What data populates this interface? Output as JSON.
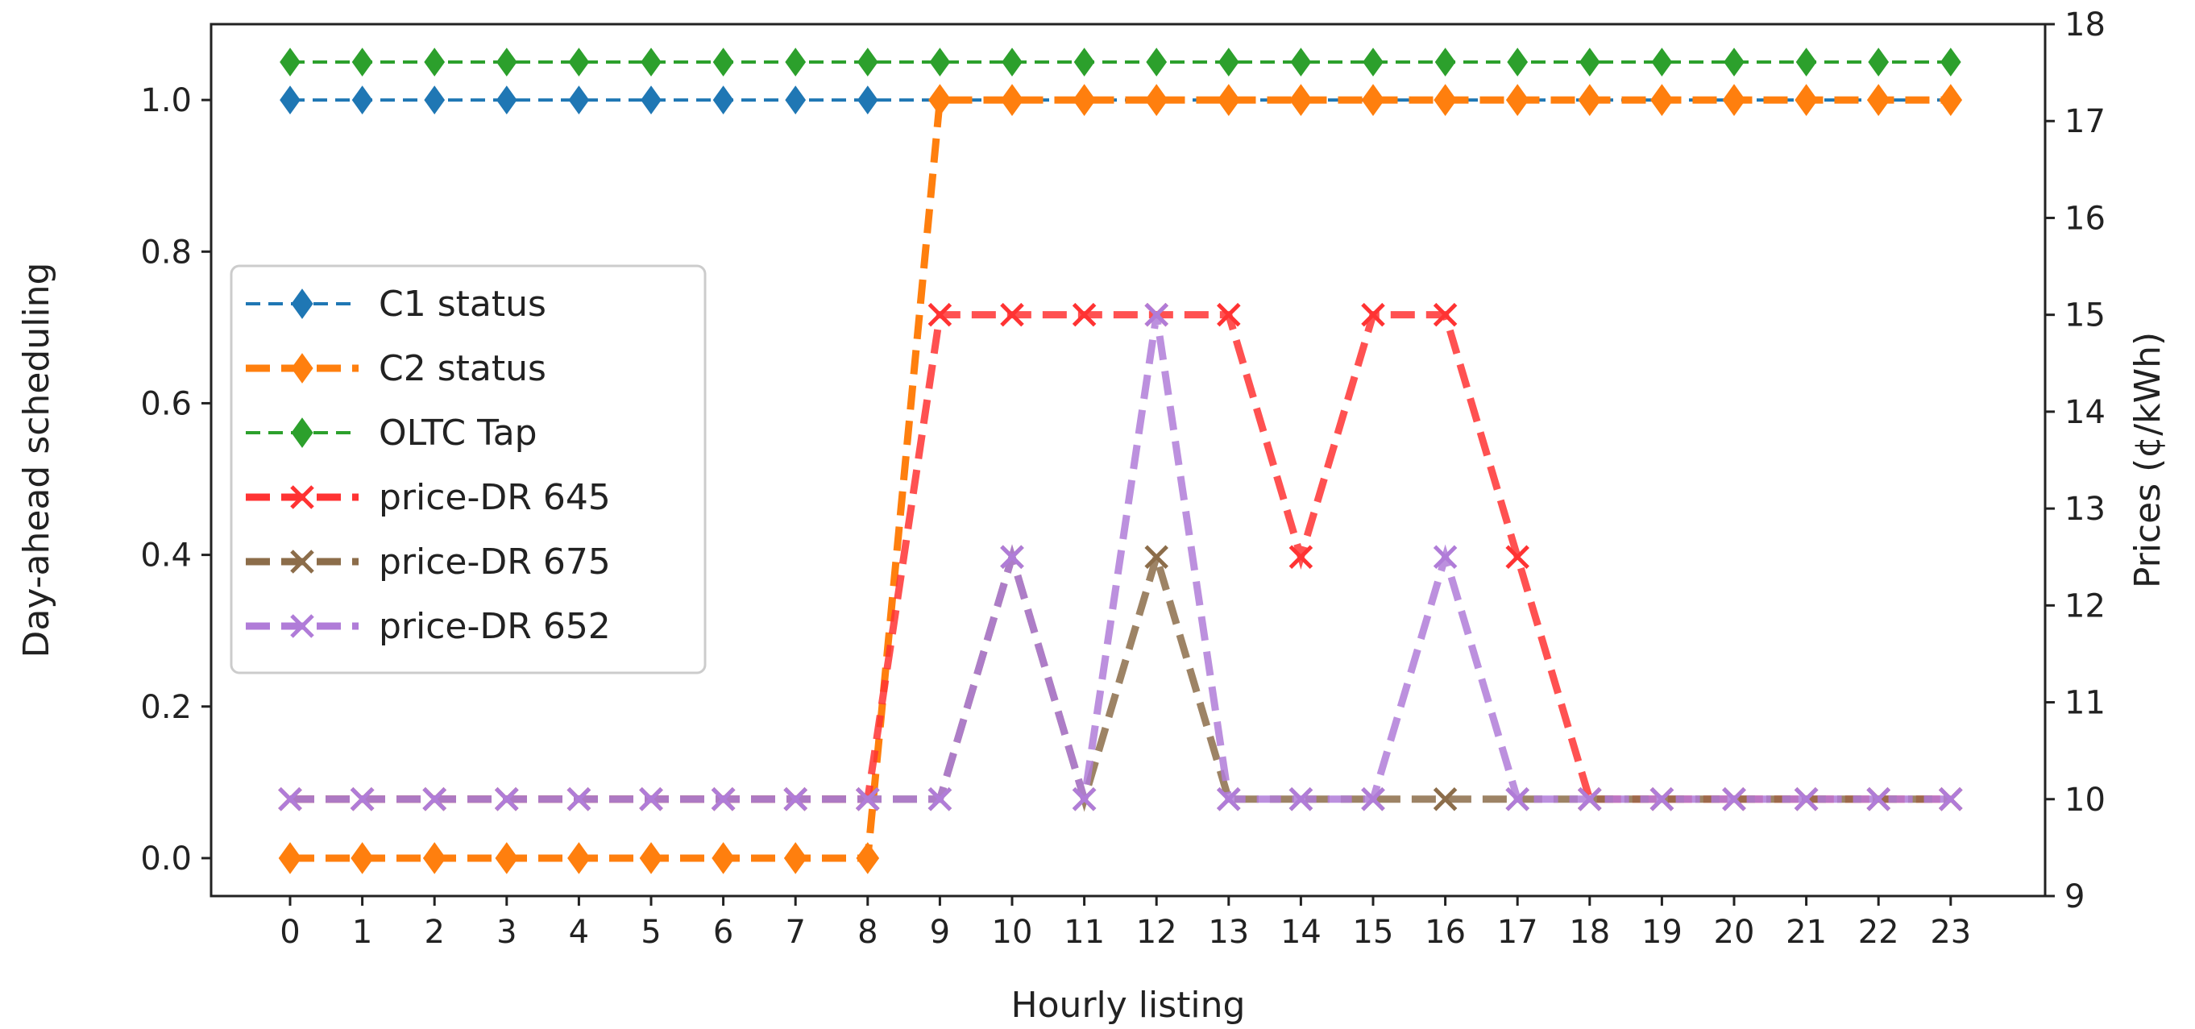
{
  "chart_data": {
    "type": "line",
    "xlabel": "Hourly listing",
    "ylabel_left": "Day-ahead scheduling",
    "ylabel_right": "Prices (¢/kWh)",
    "x": [
      0,
      1,
      2,
      3,
      4,
      5,
      6,
      7,
      8,
      9,
      10,
      11,
      12,
      13,
      14,
      15,
      16,
      17,
      18,
      19,
      20,
      21,
      22,
      23
    ],
    "ylim_left": [
      -0.05,
      1.1
    ],
    "ylim_right": [
      9,
      18
    ],
    "yticks_left": [
      "0.0",
      "0.2",
      "0.4",
      "0.6",
      "0.8",
      "1.0"
    ],
    "yticks_right": [
      "9",
      "10",
      "11",
      "12",
      "13",
      "14",
      "15",
      "16",
      "17",
      "18"
    ],
    "legend_position": "center-left",
    "grid": false,
    "series": [
      {
        "name": "C1 status",
        "axis": "left",
        "color": "#1f77b4",
        "marker": "diamond",
        "dash": "dashed",
        "width": "thin",
        "values": [
          1,
          1,
          1,
          1,
          1,
          1,
          1,
          1,
          1,
          1,
          1,
          1,
          1,
          1,
          1,
          1,
          1,
          1,
          1,
          1,
          1,
          1,
          1,
          1
        ]
      },
      {
        "name": "C2 status",
        "axis": "left",
        "color": "#ff7f0e",
        "marker": "diamond",
        "dash": "dashed",
        "width": "thick",
        "values": [
          0,
          0,
          0,
          0,
          0,
          0,
          0,
          0,
          0,
          1,
          1,
          1,
          1,
          1,
          1,
          1,
          1,
          1,
          1,
          1,
          1,
          1,
          1,
          1
        ]
      },
      {
        "name": "OLTC Tap",
        "axis": "left",
        "color": "#2ca02c",
        "marker": "diamond",
        "dash": "dashed",
        "width": "thin",
        "values": [
          1.05,
          1.05,
          1.05,
          1.05,
          1.05,
          1.05,
          1.05,
          1.05,
          1.05,
          1.05,
          1.05,
          1.05,
          1.05,
          1.05,
          1.05,
          1.05,
          1.05,
          1.05,
          1.05,
          1.05,
          1.05,
          1.05,
          1.05,
          1.05
        ]
      },
      {
        "name": "price-DR 645",
        "axis": "right",
        "color": "#ff3333",
        "marker": "x",
        "dash": "dashed",
        "width": "thick",
        "values": [
          10,
          10,
          10,
          10,
          10,
          10,
          10,
          10,
          10,
          15,
          15,
          15,
          15,
          15,
          12.5,
          15,
          15,
          12.5,
          10,
          10,
          10,
          10,
          10,
          10
        ]
      },
      {
        "name": "price-DR 675",
        "axis": "right",
        "color": "#8c6d4a",
        "marker": "x",
        "dash": "dashed",
        "width": "thick",
        "values": [
          10,
          10,
          10,
          10,
          10,
          10,
          10,
          10,
          10,
          10,
          12.5,
          10,
          12.5,
          10,
          10,
          10,
          10,
          10,
          10,
          10,
          10,
          10,
          10,
          10
        ]
      },
      {
        "name": "price-DR 652",
        "axis": "right",
        "color": "#b07cd8",
        "marker": "x",
        "dash": "dashed",
        "width": "thick",
        "values": [
          10,
          10,
          10,
          10,
          10,
          10,
          10,
          10,
          10,
          10,
          12.5,
          10,
          15,
          10,
          10,
          10,
          12.5,
          10,
          10,
          10,
          10,
          10,
          10,
          10
        ]
      }
    ]
  }
}
